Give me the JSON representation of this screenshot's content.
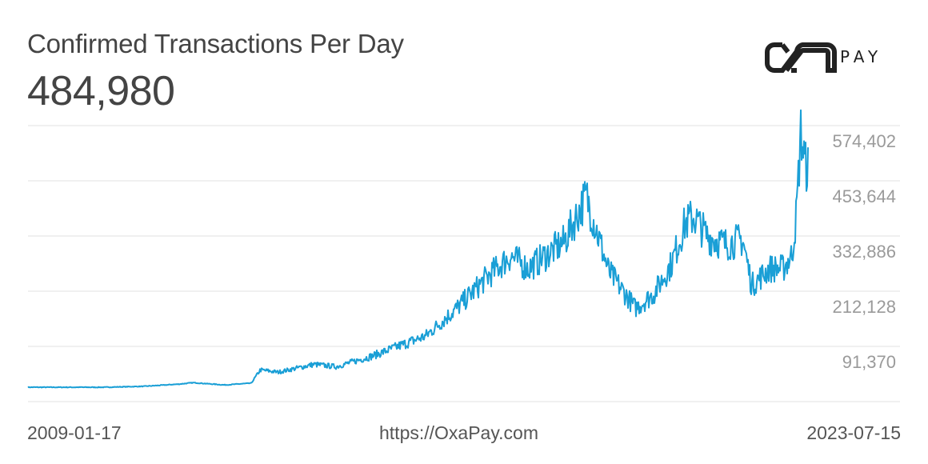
{
  "header": {
    "title": "Confirmed Transactions Per Day",
    "current_value": "484,980"
  },
  "brand": {
    "logo_text": "PAY",
    "icon": "oxapay-logo-icon"
  },
  "footer": {
    "start_date": "2009-01-17",
    "source_url": "https://OxaPay.com",
    "end_date": "2023-07-15"
  },
  "colors": {
    "line": "#1a9fd6",
    "grid": "#e0e0e0",
    "axis_label": "#9a9a9a",
    "title": "#444444"
  },
  "chart_data": {
    "type": "line",
    "title": "Confirmed Transactions Per Day",
    "xlabel": "",
    "ylabel": "",
    "x_range": [
      "2009-01-17",
      "2023-07-15"
    ],
    "ylim": [
      -29388,
      574402
    ],
    "y_ticks": [
      "574,402",
      "453,644",
      "332,886",
      "212,128",
      "91,370"
    ],
    "y_tick_values": [
      574402,
      453644,
      332886,
      212128,
      91370
    ],
    "grid": true,
    "legend": null,
    "latest_value": 484980,
    "series": [
      {
        "name": "Confirmed Transactions Per Day",
        "color": "#1a9fd6",
        "x": [
          "2009-01",
          "2010-06",
          "2011-03",
          "2011-11",
          "2012-02",
          "2012-09",
          "2013-03",
          "2013-05",
          "2013-09",
          "2014-05",
          "2014-10",
          "2015-06",
          "2016-06",
          "2017-01",
          "2017-08",
          "2018-01",
          "2018-05",
          "2019-01",
          "2019-06",
          "2019-11",
          "2020-05",
          "2020-09",
          "2021-01",
          "2021-04",
          "2021-06",
          "2021-09",
          "2022-01",
          "2022-05",
          "2022-07",
          "2022-11",
          "2023-02",
          "2023-04",
          "2023-05",
          "2023-06",
          "2023-07"
        ],
        "values": [
          2000,
          2000,
          4000,
          9000,
          12000,
          7000,
          11000,
          40000,
          35000,
          52000,
          47000,
          70000,
          114000,
          175000,
          245000,
          289000,
          262000,
          320000,
          420000,
          255000,
          175000,
          205000,
          271000,
          358000,
          376000,
          333000,
          315000,
          325000,
          225000,
          262000,
          262000,
          290000,
          380000,
          560000,
          485000
        ]
      }
    ]
  }
}
